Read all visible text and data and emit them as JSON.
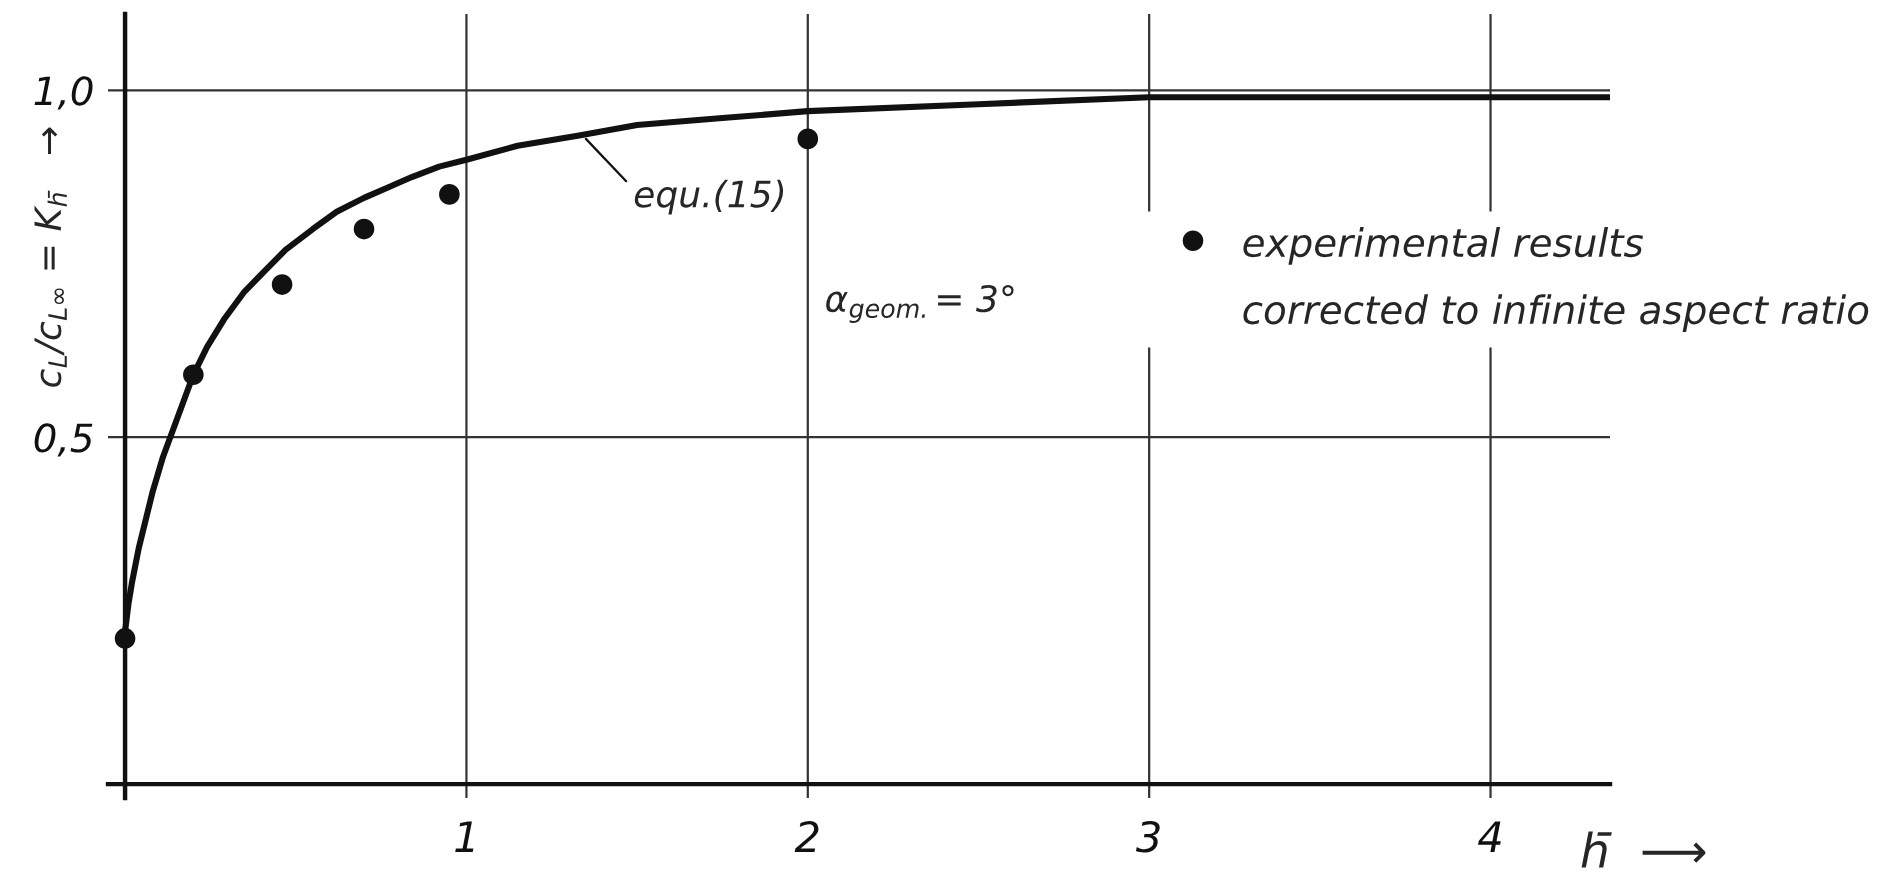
{
  "chart_data": {
    "type": "scatter",
    "xlim": [
      -0.05,
      4.35
    ],
    "ylim": [
      -0.02,
      1.11
    ],
    "xticks": [
      1,
      2,
      3,
      4
    ],
    "yticks": [
      {
        "value": 0.5,
        "label": "0,5"
      },
      {
        "value": 1.0,
        "label": "1,0"
      }
    ],
    "xlabel": "h̄  ⟶",
    "ylabel": "c$_{L}$/c$_{L∞}$ = K$_{h̄}$   →",
    "grid": true,
    "legend": "right",
    "series": [
      {
        "type": "line",
        "color": "#111111",
        "line_style": "solid",
        "marker": "none",
        "x": [
          0,
          0.01,
          0.02,
          0.04,
          0.06,
          0.08,
          0.11,
          0.14,
          0.17,
          0.2,
          0.24,
          0.29,
          0.35,
          0.41,
          0.47,
          0.55,
          0.62,
          0.7,
          0.77,
          0.84,
          0.92,
          1.0,
          1.15,
          1.33,
          1.5,
          1.75,
          2.0,
          2.5,
          3.0,
          3.5,
          4.0,
          4.35
        ],
        "values": [
          0.22,
          0.26,
          0.29,
          0.34,
          0.38,
          0.42,
          0.47,
          0.51,
          0.55,
          0.59,
          0.63,
          0.67,
          0.71,
          0.74,
          0.77,
          0.8,
          0.825,
          0.845,
          0.86,
          0.875,
          0.89,
          0.9,
          0.92,
          0.935,
          0.95,
          0.96,
          0.97,
          0.98,
          0.99,
          0.99,
          0.99,
          0.99
        ]
      },
      {
        "name": "experimental results\ncorrected to infinite aspect ratio",
        "color": "#111111",
        "marker": "circle",
        "x": [
          0,
          0.2,
          0.46,
          0.7,
          0.95,
          2.0
        ],
        "values": [
          0.21,
          0.59,
          0.72,
          0.8,
          0.85,
          0.93
        ]
      }
    ],
    "annotations": [
      {
        "text": "equ.(15)",
        "x": 1.35,
        "y": 0.93
      },
      "α$_{geom.}$= 3°"
    ]
  }
}
